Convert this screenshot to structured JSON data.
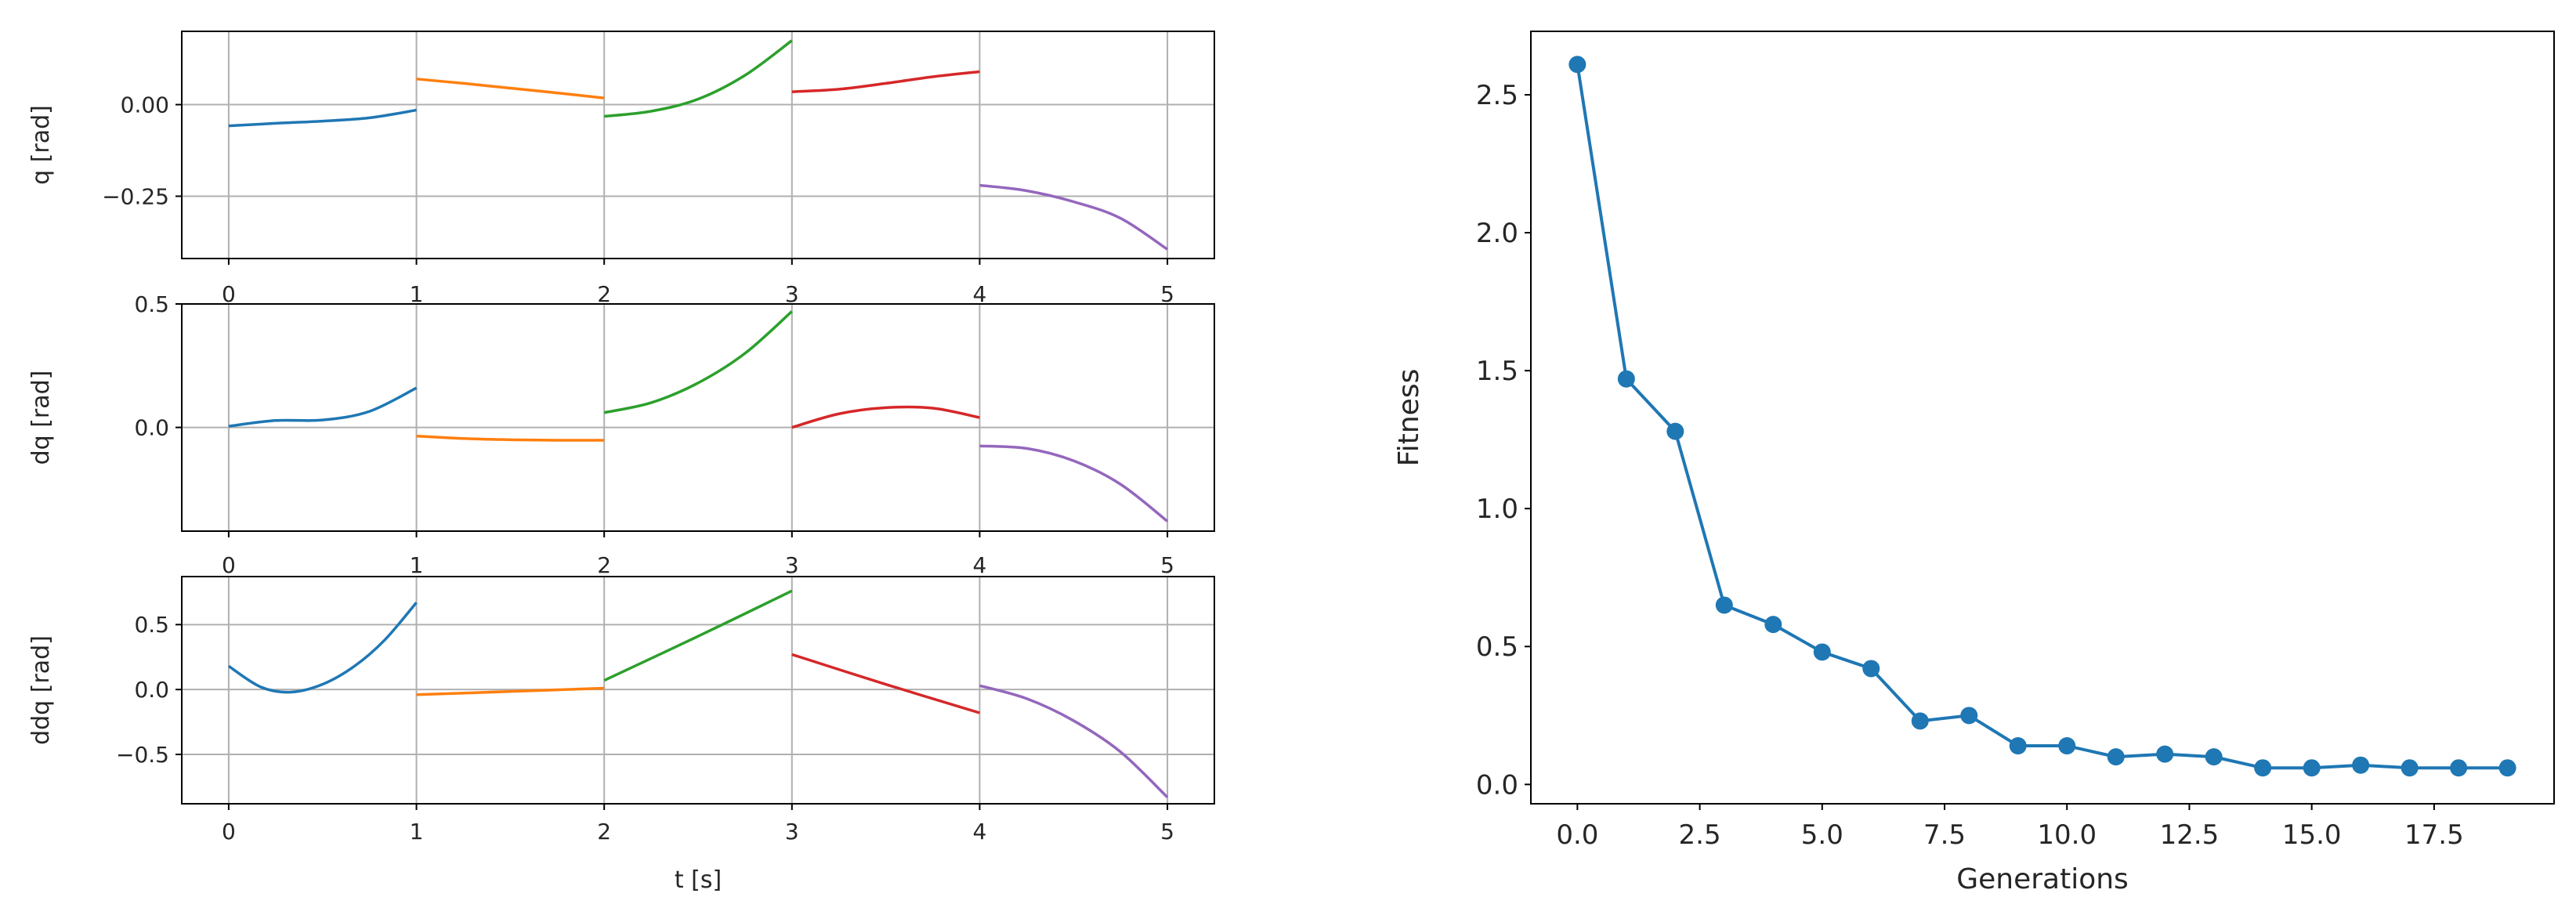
{
  "figure": {
    "background": "#ffffff",
    "grid_color": "#b0b0b0",
    "axis_color": "#000000"
  },
  "chart_data": [
    {
      "type": "line",
      "panel": "q",
      "ylabel": "q [rad]",
      "xlabel": "",
      "xlim": [
        -0.25,
        5.25
      ],
      "ylim": [
        -0.42,
        0.2
      ],
      "xticks": [
        "0",
        "1",
        "2",
        "3",
        "4",
        "5"
      ],
      "yticks": [
        {
          "value": 0.0,
          "label": "0.00"
        },
        {
          "value": -0.25,
          "label": "−0.25"
        }
      ],
      "grid": true,
      "series": [
        {
          "color": "#1f77b4",
          "x": [
            0,
            0.25,
            0.5,
            0.75,
            1.0
          ],
          "y": [
            -0.058,
            -0.051,
            -0.045,
            -0.036,
            -0.015
          ]
        },
        {
          "color": "#ff7f0e",
          "x": [
            1,
            1.25,
            1.5,
            1.75,
            2.0
          ],
          "y": [
            0.07,
            0.058,
            0.045,
            0.032,
            0.018
          ]
        },
        {
          "color": "#2ca02c",
          "x": [
            2,
            2.25,
            2.5,
            2.75,
            3.0
          ],
          "y": [
            -0.032,
            -0.018,
            0.015,
            0.08,
            0.175
          ]
        },
        {
          "color": "#d62728",
          "x": [
            3,
            3.25,
            3.5,
            3.75,
            4.0
          ],
          "y": [
            0.035,
            0.042,
            0.058,
            0.076,
            0.09
          ]
        },
        {
          "color": "#9467bd",
          "x": [
            4,
            4.25,
            4.5,
            4.75,
            5.0
          ],
          "y": [
            -0.22,
            -0.235,
            -0.265,
            -0.31,
            -0.395
          ]
        }
      ]
    },
    {
      "type": "line",
      "panel": "dq",
      "ylabel": "dq [rad]",
      "xlabel": "",
      "xlim": [
        -0.25,
        5.25
      ],
      "ylim": [
        -0.42,
        0.5
      ],
      "xticks": [
        "0",
        "1",
        "2",
        "3",
        "4",
        "5"
      ],
      "yticks": [
        {
          "value": 0.5,
          "label": "0.5"
        },
        {
          "value": 0.0,
          "label": "0.0"
        }
      ],
      "grid": true,
      "series": [
        {
          "color": "#1f77b4",
          "x": [
            0,
            0.25,
            0.5,
            0.75,
            1.0
          ],
          "y": [
            0.005,
            0.028,
            0.03,
            0.065,
            0.16
          ]
        },
        {
          "color": "#ff7f0e",
          "x": [
            1,
            1.25,
            1.5,
            1.75,
            2.0
          ],
          "y": [
            -0.035,
            -0.045,
            -0.05,
            -0.052,
            -0.052
          ]
        },
        {
          "color": "#2ca02c",
          "x": [
            2,
            2.25,
            2.5,
            2.75,
            3.0
          ],
          "y": [
            0.06,
            0.1,
            0.18,
            0.3,
            0.47
          ]
        },
        {
          "color": "#d62728",
          "x": [
            3,
            3.25,
            3.5,
            3.75,
            4.0
          ],
          "y": [
            0.0,
            0.055,
            0.08,
            0.078,
            0.04
          ]
        },
        {
          "color": "#9467bd",
          "x": [
            4,
            4.25,
            4.5,
            4.75,
            5.0
          ],
          "y": [
            -0.075,
            -0.085,
            -0.135,
            -0.23,
            -0.38
          ]
        }
      ]
    },
    {
      "type": "line",
      "panel": "ddq",
      "ylabel": "ddq [rad]",
      "xlabel": "t [s]",
      "xlim": [
        -0.25,
        5.25
      ],
      "ylim": [
        -0.88,
        0.87
      ],
      "xticks": [
        "0",
        "1",
        "2",
        "3",
        "4",
        "5"
      ],
      "yticks": [
        {
          "value": 0.5,
          "label": "0.5"
        },
        {
          "value": 0.0,
          "label": "0.0"
        },
        {
          "value": -0.5,
          "label": "−0.5"
        }
      ],
      "grid": true,
      "series": [
        {
          "color": "#1f77b4",
          "x": [
            0,
            0.17,
            0.33,
            0.5,
            0.67,
            0.83,
            1.0
          ],
          "y": [
            0.18,
            0.02,
            -0.02,
            0.04,
            0.18,
            0.38,
            0.67
          ]
        },
        {
          "color": "#ff7f0e",
          "x": [
            1,
            1.5,
            2.0
          ],
          "y": [
            -0.04,
            -0.015,
            0.01
          ]
        },
        {
          "color": "#2ca02c",
          "x": [
            2,
            2.5,
            3.0
          ],
          "y": [
            0.07,
            0.41,
            0.76
          ]
        },
        {
          "color": "#d62728",
          "x": [
            3,
            3.5,
            4.0
          ],
          "y": [
            0.27,
            0.04,
            -0.18
          ]
        },
        {
          "color": "#9467bd",
          "x": [
            4,
            4.25,
            4.5,
            4.75,
            5.0
          ],
          "y": [
            0.03,
            -0.07,
            -0.24,
            -0.48,
            -0.83
          ]
        }
      ]
    },
    {
      "type": "line",
      "panel": "fitness",
      "ylabel": "Fitness",
      "xlabel": "Generations",
      "xlim": [
        -0.95,
        19.95
      ],
      "ylim": [
        -0.07,
        2.73
      ],
      "xticks": [
        {
          "value": 0,
          "label": "0.0"
        },
        {
          "value": 2.5,
          "label": "2.5"
        },
        {
          "value": 5,
          "label": "5.0"
        },
        {
          "value": 7.5,
          "label": "7.5"
        },
        {
          "value": 10,
          "label": "10.0"
        },
        {
          "value": 12.5,
          "label": "12.5"
        },
        {
          "value": 15,
          "label": "15.0"
        },
        {
          "value": 17.5,
          "label": "17.5"
        }
      ],
      "yticks": [
        {
          "value": 0.0,
          "label": "0.0"
        },
        {
          "value": 0.5,
          "label": "0.5"
        },
        {
          "value": 1.0,
          "label": "1.0"
        },
        {
          "value": 1.5,
          "label": "1.5"
        },
        {
          "value": 2.0,
          "label": "2.0"
        },
        {
          "value": 2.5,
          "label": "2.5"
        }
      ],
      "grid": false,
      "markers": true,
      "series": [
        {
          "color": "#1f77b4",
          "x": [
            0,
            1,
            2,
            3,
            4,
            5,
            6,
            7,
            8,
            9,
            10,
            11,
            12,
            13,
            14,
            15,
            16,
            17,
            18,
            19
          ],
          "y": [
            2.61,
            1.47,
            1.28,
            0.65,
            0.58,
            0.48,
            0.42,
            0.23,
            0.25,
            0.14,
            0.14,
            0.1,
            0.11,
            0.1,
            0.06,
            0.06,
            0.07,
            0.06,
            0.06,
            0.06
          ]
        }
      ]
    }
  ]
}
